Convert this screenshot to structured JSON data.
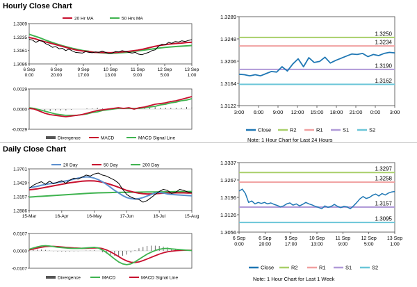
{
  "hourly": {
    "title": "Hourly Close Chart",
    "note": "Note: 1 Hour Chart for Last 24 Hours"
  },
  "daily": {
    "title": "Daily Close Chart",
    "note": "Note: 1 Hour Chart for Last 1 Week"
  },
  "colors": {
    "price": "#000000",
    "ma_red": "#c8102e",
    "ma_green": "#3fb34f",
    "ma_blue": "#5b8fcf",
    "macd_red": "#c8102e",
    "signal_green": "#3fb34f",
    "divergence": "#555555",
    "close_line": "#1f77b4",
    "r2": "#a8cf6a",
    "r1": "#f0a0a0",
    "s1": "#b09ad8",
    "s2": "#6cc6d8"
  },
  "chart_data": [
    {
      "id": "hourly_price",
      "type": "line",
      "ylim": [
        1.3086,
        1.3309
      ],
      "y_ticks": [
        "1.3309",
        "1.3235",
        "1.3161",
        "1.3086"
      ],
      "x_ticks": [
        "6 Sep\n0:00",
        "6 Sep\n20:00",
        "9 Sep\n17:00",
        "10 Sep\n13:00",
        "11 Sep\n9:00",
        "12 Sep\n5:00",
        "13 Sep\n1:00"
      ],
      "legend": [
        "20 Hr MA",
        "50 Hrs MA"
      ],
      "series": [
        {
          "name": "Close",
          "values": [
            1.3222,
            1.3218,
            1.3205,
            1.3215,
            1.3212,
            1.3198,
            1.319,
            1.3178,
            1.3182,
            1.317,
            1.3172,
            1.316,
            1.3168,
            1.3158,
            1.315,
            1.3148,
            1.3146,
            1.3154,
            1.315,
            1.3148,
            1.3152,
            1.315,
            1.3157,
            1.315,
            1.3144,
            1.3146,
            1.3155,
            1.3152,
            1.316,
            1.3155,
            1.315,
            1.3146,
            1.315,
            1.314,
            1.3137,
            1.3144,
            1.315,
            1.316,
            1.3164,
            1.3184,
            1.3195,
            1.3192,
            1.3205,
            1.32,
            1.321,
            1.3207,
            1.3214,
            1.321,
            1.3216,
            1.322
          ]
        },
        {
          "name": "20 Hr MA",
          "values": [
            1.3232,
            1.3226,
            1.3216,
            1.3208,
            1.32,
            1.3192,
            1.3184,
            1.3176,
            1.3168,
            1.3161,
            1.3157,
            1.3154,
            1.315,
            1.315,
            1.3149,
            1.3148,
            1.315,
            1.3152,
            1.3154,
            1.3158,
            1.3162,
            1.3168,
            1.3175,
            1.3182,
            1.3188,
            1.3192,
            1.3196,
            1.3199,
            1.3201,
            1.3204,
            1.3206
          ]
        },
        {
          "name": "50 Hrs MA",
          "values": [
            1.325,
            1.324,
            1.323,
            1.3218,
            1.3207,
            1.3197,
            1.3188,
            1.318,
            1.3172,
            1.3166,
            1.316,
            1.3156,
            1.3151,
            1.3148,
            1.3146,
            1.3145,
            1.3146,
            1.3148,
            1.315,
            1.3154,
            1.3158,
            1.3162,
            1.3166,
            1.317,
            1.3174,
            1.3177,
            1.318,
            1.3182,
            1.3184,
            1.3186,
            1.3188
          ]
        }
      ]
    },
    {
      "id": "hourly_macd",
      "type": "line",
      "ylim": [
        -0.0029,
        0.0029
      ],
      "y_ticks": [
        "0.0029",
        "0.0000",
        "-0.0029"
      ],
      "legend": [
        "Divergence",
        "MACD",
        "MACD Signal Line"
      ],
      "series": [
        {
          "name": "MACD",
          "values": [
            0.0001,
            0.0,
            -0.0003,
            -0.0006,
            -0.0008,
            -0.0009,
            -0.001,
            -0.0011,
            -0.001,
            -0.0009,
            -0.0008,
            -0.0006,
            -0.0004,
            -0.0002,
            -0.0001,
            0.0,
            0.0001,
            0.0002,
            0.0001,
            0.0002,
            0.0,
            0.0002,
            0.0003,
            0.0005,
            0.0007,
            0.0008,
            0.0009,
            0.0011,
            0.0012,
            0.0014,
            0.0016,
            0.0018
          ]
        },
        {
          "name": "MACD Signal Line",
          "values": [
            0.0002,
            0.0001,
            -0.0001,
            -0.0003,
            -0.0005,
            -0.0007,
            -0.0008,
            -0.0009,
            -0.0009,
            -0.0009,
            -0.0008,
            -0.0007,
            -0.0005,
            -0.0004,
            -0.0002,
            -0.0001,
            0.0,
            0.0001,
            0.0001,
            0.0001,
            0.0001,
            0.0001,
            0.0002,
            0.0003,
            0.0004,
            0.0006,
            0.0007,
            0.0009,
            0.001,
            0.0012,
            0.0013,
            0.0015
          ]
        },
        {
          "name": "Divergence",
          "values": [
            -0.0001,
            -0.0001,
            -0.0002,
            -0.0003,
            -0.0003,
            -0.0002,
            -0.0002,
            -0.0002,
            -0.0001,
            0.0,
            0.0,
            0.0001,
            0.0001,
            0.0002,
            0.0001,
            0.0001,
            0.0001,
            0.0001,
            0.0,
            0.0001,
            -0.0001,
            0.0001,
            0.0001,
            0.0002,
            0.0003,
            0.0002,
            0.0002,
            0.0002,
            0.0002,
            0.0002,
            0.0003,
            0.0003
          ]
        }
      ]
    },
    {
      "id": "hourly_pivot",
      "type": "line",
      "ylim": [
        1.3122,
        1.3289
      ],
      "y_ticks": [
        "1.3289",
        "1.3248",
        "1.3206",
        "1.3164",
        "1.3122"
      ],
      "x_ticks": [
        "3:00",
        "6:00",
        "9:00",
        "12:00",
        "15:00",
        "18:00",
        "21:00",
        "0:00",
        "3:00"
      ],
      "legend": [
        "Close",
        "R2",
        "R1",
        "S1",
        "S2"
      ],
      "levels": [
        {
          "name": "R2",
          "value": 1.325,
          "label": "1.3250"
        },
        {
          "name": "R1",
          "value": 1.3234,
          "label": "1.3234"
        },
        {
          "name": "S1",
          "value": 1.319,
          "label": "1.3190"
        },
        {
          "name": "S2",
          "value": 1.3162,
          "label": "1.3162"
        }
      ],
      "series": [
        {
          "name": "Close",
          "values": [
            1.3181,
            1.318,
            1.3178,
            1.318,
            1.3178,
            1.3182,
            1.3186,
            1.3185,
            1.3195,
            1.3187,
            1.32,
            1.321,
            1.3195,
            1.3212,
            1.3203,
            1.3205,
            1.3213,
            1.3202,
            1.3207,
            1.3211,
            1.3215,
            1.3219,
            1.3218,
            1.322,
            1.3214,
            1.3218,
            1.3216,
            1.322,
            1.3222,
            1.3221
          ]
        }
      ]
    },
    {
      "id": "daily_price",
      "type": "line",
      "ylim": [
        1.2886,
        1.3701
      ],
      "y_ticks": [
        "1.3701",
        "1.3429",
        "1.3157",
        "1.2886"
      ],
      "x_ticks": [
        "15-Mar",
        "16-Apr",
        "16-May",
        "17-Jun",
        "16-Jul",
        "15-Aug"
      ],
      "legend": [
        "20 Day",
        "50 Day",
        "200 Day"
      ],
      "series": [
        {
          "name": "Close",
          "values": [
            1.332,
            1.338,
            1.342,
            1.345,
            1.34,
            1.346,
            1.341,
            1.344,
            1.347,
            1.342,
            1.348,
            1.352,
            1.35,
            1.354,
            1.358,
            1.356,
            1.36,
            1.362,
            1.358,
            1.356,
            1.352,
            1.348,
            1.342,
            1.33,
            1.32,
            1.315,
            1.312,
            1.31,
            1.305,
            1.308,
            1.314,
            1.32,
            1.326,
            1.33,
            1.328,
            1.322,
            1.324,
            1.33,
            1.328,
            1.325,
            1.323
          ]
        },
        {
          "name": "20 Day",
          "values": [
            1.333,
            1.3345,
            1.336,
            1.338,
            1.3395,
            1.341,
            1.342,
            1.3435,
            1.345,
            1.3465,
            1.348,
            1.35,
            1.352,
            1.3535,
            1.3545,
            1.354,
            1.352,
            1.349,
            1.345,
            1.34,
            1.334,
            1.328,
            1.323,
            1.318,
            1.314,
            1.312,
            1.311,
            1.312,
            1.314,
            1.317,
            1.32,
            1.323,
            1.324,
            1.323,
            1.321,
            1.32,
            1.3195,
            1.319,
            1.3185,
            1.318,
            1.3175
          ]
        },
        {
          "name": "50 Day",
          "values": [
            1.329,
            1.33,
            1.331,
            1.3325,
            1.334,
            1.3355,
            1.337,
            1.3385,
            1.34,
            1.3415,
            1.343,
            1.344,
            1.345,
            1.346,
            1.3465,
            1.3468,
            1.3465,
            1.3455,
            1.344,
            1.342,
            1.3395,
            1.337,
            1.334,
            1.331,
            1.328,
            1.326,
            1.324,
            1.3225,
            1.3215,
            1.321,
            1.321,
            1.3215,
            1.322,
            1.3225,
            1.3228,
            1.323,
            1.3232,
            1.3233,
            1.3232,
            1.323,
            1.3228
          ]
        },
        {
          "name": "200 Day",
          "values": [
            1.315,
            1.3155,
            1.316,
            1.3165,
            1.317,
            1.3175,
            1.318,
            1.3185,
            1.319,
            1.3195,
            1.32,
            1.3205,
            1.321,
            1.3215,
            1.322,
            1.3225,
            1.323,
            1.3232,
            1.3234,
            1.3236,
            1.3238,
            1.324,
            1.3241,
            1.3242,
            1.3243,
            1.3244,
            1.3245,
            1.3246,
            1.3247,
            1.3248,
            1.3249,
            1.325,
            1.3251,
            1.3252,
            1.3253,
            1.3254,
            1.3255,
            1.3256,
            1.3257,
            1.3258,
            1.3258
          ]
        }
      ]
    },
    {
      "id": "daily_macd",
      "type": "line",
      "ylim": [
        -0.0107,
        0.0107
      ],
      "y_ticks": [
        "0.0107",
        "0.0000",
        "-0.0107"
      ],
      "legend": [
        "Divergence",
        "MACD",
        "MACD Signal Line"
      ],
      "series": [
        {
          "name": "MACD",
          "values": [
            0.001,
            0.0018,
            0.0025,
            0.003,
            0.0032,
            0.003,
            0.0026,
            0.0022,
            0.002,
            0.0018,
            0.0016,
            0.0015,
            0.0015,
            0.0016,
            0.0018,
            0.002,
            0.0022,
            0.0018,
            0.0005,
            -0.001,
            -0.003,
            -0.005,
            -0.0068,
            -0.008,
            -0.0085,
            -0.008,
            -0.0068,
            -0.0052,
            -0.0036,
            -0.002,
            -0.0008,
            0.0002,
            0.001,
            0.0014,
            0.0015,
            0.0012,
            0.001,
            0.0008,
            0.0006,
            0.0004,
            0.0002
          ]
        },
        {
          "name": "MACD Signal Line",
          "values": [
            0.0006,
            0.0011,
            0.0017,
            0.0022,
            0.0026,
            0.0028,
            0.0028,
            0.0026,
            0.0024,
            0.0022,
            0.002,
            0.0018,
            0.0017,
            0.0016,
            0.0016,
            0.0017,
            0.0018,
            0.0018,
            0.0014,
            0.0006,
            -0.0006,
            -0.002,
            -0.0035,
            -0.005,
            -0.0062,
            -0.007,
            -0.0072,
            -0.0068,
            -0.006,
            -0.005,
            -0.004,
            -0.003,
            -0.002,
            -0.0012,
            -0.0006,
            -0.0002,
            0.0001,
            0.0003,
            0.0004,
            0.0004,
            0.0004
          ]
        },
        {
          "name": "Divergence",
          "values": [
            0.0004,
            0.0007,
            0.0008,
            0.0008,
            0.0006,
            0.0002,
            -0.0002,
            -0.0004,
            -0.0004,
            -0.0004,
            -0.0004,
            -0.0003,
            -0.0002,
            0.0,
            0.0002,
            0.0003,
            0.0004,
            0.0,
            -0.0009,
            -0.0016,
            -0.0024,
            -0.003,
            -0.0033,
            -0.003,
            -0.0023,
            -0.001,
            0.0004,
            0.0016,
            0.0024,
            0.003,
            0.0032,
            0.0032,
            0.003,
            0.0026,
            0.0021,
            0.0014,
            0.0009,
            0.0005,
            0.0002,
            0.0,
            -0.0002
          ]
        }
      ]
    },
    {
      "id": "daily_pivot",
      "type": "line",
      "ylim": [
        1.3056,
        1.3337
      ],
      "y_ticks": [
        "1.3337",
        "1.3267",
        "1.3196",
        "1.3126",
        "1.3056"
      ],
      "x_ticks": [
        "6 Sep\n0:00",
        "6 Sep\n20:00",
        "9 Sep\n17:00",
        "10 Sep\n13:00",
        "11 Sep\n9:00",
        "12 Sep\n5:00",
        "13 Sep\n1:00"
      ],
      "legend": [
        "Close",
        "R2",
        "R1",
        "S1",
        "S2"
      ],
      "levels": [
        {
          "name": "R2",
          "value": 1.3297,
          "label": "1.3297"
        },
        {
          "name": "R1",
          "value": 1.3258,
          "label": "1.3258"
        },
        {
          "name": "S1",
          "value": 1.3157,
          "label": "1.3157"
        },
        {
          "name": "S2",
          "value": 1.3095,
          "label": "1.3095"
        }
      ],
      "series": [
        {
          "name": "Close",
          "values": [
            1.3222,
            1.323,
            1.3212,
            1.3176,
            1.3182,
            1.317,
            1.3176,
            1.3172,
            1.3176,
            1.317,
            1.3174,
            1.3168,
            1.3164,
            1.3158,
            1.3162,
            1.317,
            1.3174,
            1.3165,
            1.317,
            1.3162,
            1.3168,
            1.3176,
            1.317,
            1.3166,
            1.316,
            1.3156,
            1.315,
            1.3162,
            1.3156,
            1.316,
            1.3168,
            1.316,
            1.3155,
            1.316,
            1.3158,
            1.315,
            1.3162,
            1.3175,
            1.319,
            1.32,
            1.3192,
            1.3196,
            1.3205,
            1.321,
            1.3202,
            1.3212,
            1.3206,
            1.3214,
            1.3218,
            1.322
          ]
        }
      ]
    }
  ]
}
